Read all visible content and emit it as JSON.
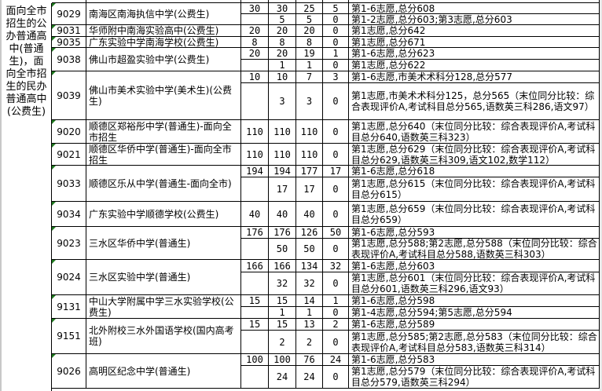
{
  "category_label": "面向全市招生的公办普通高中(普通生)，面向全市招生的民办普通高中(公费生)",
  "rows": [
    {
      "code": "9029",
      "name": "南海区南海执信中学(公费生)",
      "plan": "30",
      "subs": [
        [
          "30",
          "25",
          "5",
          "第1-6志愿,总分608"
        ],
        [
          "5",
          "5",
          "0",
          "第1-2志愿,总分603;第3志愿,总分603"
        ]
      ]
    },
    {
      "code": "9031",
      "name": "华师附中南海实验高中(公费生)",
      "plan": "20",
      "subs": [
        [
          "20",
          "20",
          "0",
          "第1志愿,总分642"
        ]
      ]
    },
    {
      "code": "9035",
      "name": "广东实验中学南海学校(公费生)",
      "plan": "8",
      "subs": [
        [
          "8",
          "8",
          "0",
          "第1志愿,总分671"
        ]
      ]
    },
    {
      "code": "9038",
      "name": "佛山市超盈实验中学(公费生)",
      "plan": "20",
      "subs": [
        [
          "20",
          "19",
          "1",
          "第1-6志愿,总分623"
        ],
        [
          "1",
          "1",
          "0",
          "第1志愿,总分622"
        ]
      ]
    },
    {
      "code": "9039",
      "name": "佛山市美术实验中学(美术生)(公费生)",
      "plan": "10",
      "subs": [
        [
          "10",
          "7",
          "3",
          "第1-6志愿,市美术术科分128,总分577"
        ],
        [
          "3",
          "3",
          "0",
          "第1志愿,市美术术科分125，总分565（末位同分比较：综合表现评价A,考试科目总分565,语数英三科286,语文97）"
        ]
      ]
    },
    {
      "code": "9020",
      "name": "顺德区郑裕彤中学(普通生)-面向全市招生",
      "plan": "110",
      "subs": [
        [
          "110",
          "110",
          "0",
          "第1志愿,总分640（末位同分比较：综合表现评价A,考试科目总分640,语数英三科323）"
        ]
      ]
    },
    {
      "code": "9021",
      "name": "顺德区华侨中学(普通生)-面向全市招生",
      "plan": "110",
      "subs": [
        [
          "110",
          "110",
          "0",
          "第1志愿,总分629（末位同分比较：综合表现评价A,考试科目总分629,语数英三科309,语文102,数学112）"
        ]
      ]
    },
    {
      "code": "9033",
      "name": "顺德区乐从中学(普通生-面向全市)",
      "plan": "194",
      "subs": [
        [
          "194",
          "177",
          "17",
          "第1-6志愿,总分618"
        ],
        [
          "17",
          "17",
          "0",
          "第1志愿,总分615（末位同分比较：综合表现评价A,考试科目总分615）"
        ]
      ]
    },
    {
      "code": "9034",
      "name": "广东实验中学顺德学校(公费生)",
      "plan": "40",
      "subs": [
        [
          "40",
          "40",
          "0",
          "第1志愿,总分659（末位同分比较：综合表现评价A,考试科目总分659）"
        ]
      ]
    },
    {
      "code": "9023",
      "name": "三水区华侨中学(普通生)",
      "plan": "176",
      "subs": [
        [
          "176",
          "126",
          "50",
          "第1-6志愿,总分593"
        ],
        [
          "50",
          "50",
          "0",
          "第1志愿,总分588;第2志愿,总分588（末位同分比较：综合表现评价A,考试科目总分588,语数英三科303）"
        ]
      ]
    },
    {
      "code": "9024",
      "name": "三水区实验中学(普通生)",
      "plan": "166",
      "subs": [
        [
          "166",
          "134",
          "32",
          "第1-6志愿,总分603"
        ],
        [
          "32",
          "32",
          "0",
          "第1志愿,总分601（末位同分比较：综合表现评价A,考试科目总分601,语数英三科296,语文93）"
        ]
      ]
    },
    {
      "code": "9131",
      "name": "中山大学附属中学三水实验学校(公费生)",
      "plan": "15",
      "subs": [
        [
          "15",
          "14",
          "1",
          "第1-6志愿,总分598"
        ],
        [
          "1",
          "1",
          "0",
          "第1-4志愿,总分594;第5志愿,总分594"
        ]
      ]
    },
    {
      "code": "9151",
      "name": "北外附校三水外国语学校(国内高考班)",
      "plan": "15",
      "subs": [
        [
          "15",
          "13",
          "2",
          "第1-6志愿,总分589"
        ],
        [
          "2",
          "2",
          "0",
          "第1志愿,总分585;第2志愿,总分583（末位同分比较：综合表现评价A,考试科目总分583,语数英三科314）"
        ]
      ]
    },
    {
      "code": "9026",
      "name": "高明区纪念中学(普通生)",
      "plan": "100",
      "subs": [
        [
          "100",
          "76",
          "24",
          "第1-6志愿,总分583"
        ],
        [
          "24",
          "24",
          "0",
          "第1志愿,总分579（末位同分比较：综合表现评价A,考试科目总分579,语数英三科294）"
        ]
      ]
    }
  ],
  "colors": {
    "marker": "#1f7a1f",
    "grid": "#000000"
  }
}
